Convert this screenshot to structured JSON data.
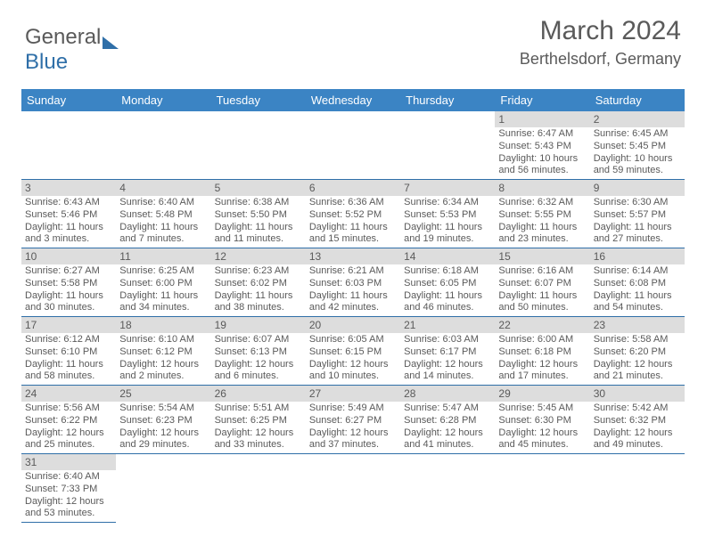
{
  "logo": {
    "part1": "General",
    "part2": "Blue"
  },
  "header": {
    "title": "March 2024",
    "location": "Berthelsdorf, Germany"
  },
  "colors": {
    "header_bg": "#3b84c4",
    "header_text": "#ffffff",
    "daynum_bg": "#dddddd",
    "text": "#5a5a5a",
    "border": "#2f6fa8",
    "logo_gray": "#5a5a5a",
    "logo_blue": "#2f6fa8"
  },
  "days": [
    "Sunday",
    "Monday",
    "Tuesday",
    "Wednesday",
    "Thursday",
    "Friday",
    "Saturday"
  ],
  "weeks": [
    [
      null,
      null,
      null,
      null,
      null,
      {
        "n": "1",
        "sr": "Sunrise: 6:47 AM",
        "ss": "Sunset: 5:43 PM",
        "d1": "Daylight: 10 hours",
        "d2": "and 56 minutes."
      },
      {
        "n": "2",
        "sr": "Sunrise: 6:45 AM",
        "ss": "Sunset: 5:45 PM",
        "d1": "Daylight: 10 hours",
        "d2": "and 59 minutes."
      }
    ],
    [
      {
        "n": "3",
        "sr": "Sunrise: 6:43 AM",
        "ss": "Sunset: 5:46 PM",
        "d1": "Daylight: 11 hours",
        "d2": "and 3 minutes."
      },
      {
        "n": "4",
        "sr": "Sunrise: 6:40 AM",
        "ss": "Sunset: 5:48 PM",
        "d1": "Daylight: 11 hours",
        "d2": "and 7 minutes."
      },
      {
        "n": "5",
        "sr": "Sunrise: 6:38 AM",
        "ss": "Sunset: 5:50 PM",
        "d1": "Daylight: 11 hours",
        "d2": "and 11 minutes."
      },
      {
        "n": "6",
        "sr": "Sunrise: 6:36 AM",
        "ss": "Sunset: 5:52 PM",
        "d1": "Daylight: 11 hours",
        "d2": "and 15 minutes."
      },
      {
        "n": "7",
        "sr": "Sunrise: 6:34 AM",
        "ss": "Sunset: 5:53 PM",
        "d1": "Daylight: 11 hours",
        "d2": "and 19 minutes."
      },
      {
        "n": "8",
        "sr": "Sunrise: 6:32 AM",
        "ss": "Sunset: 5:55 PM",
        "d1": "Daylight: 11 hours",
        "d2": "and 23 minutes."
      },
      {
        "n": "9",
        "sr": "Sunrise: 6:30 AM",
        "ss": "Sunset: 5:57 PM",
        "d1": "Daylight: 11 hours",
        "d2": "and 27 minutes."
      }
    ],
    [
      {
        "n": "10",
        "sr": "Sunrise: 6:27 AM",
        "ss": "Sunset: 5:58 PM",
        "d1": "Daylight: 11 hours",
        "d2": "and 30 minutes."
      },
      {
        "n": "11",
        "sr": "Sunrise: 6:25 AM",
        "ss": "Sunset: 6:00 PM",
        "d1": "Daylight: 11 hours",
        "d2": "and 34 minutes."
      },
      {
        "n": "12",
        "sr": "Sunrise: 6:23 AM",
        "ss": "Sunset: 6:02 PM",
        "d1": "Daylight: 11 hours",
        "d2": "and 38 minutes."
      },
      {
        "n": "13",
        "sr": "Sunrise: 6:21 AM",
        "ss": "Sunset: 6:03 PM",
        "d1": "Daylight: 11 hours",
        "d2": "and 42 minutes."
      },
      {
        "n": "14",
        "sr": "Sunrise: 6:18 AM",
        "ss": "Sunset: 6:05 PM",
        "d1": "Daylight: 11 hours",
        "d2": "and 46 minutes."
      },
      {
        "n": "15",
        "sr": "Sunrise: 6:16 AM",
        "ss": "Sunset: 6:07 PM",
        "d1": "Daylight: 11 hours",
        "d2": "and 50 minutes."
      },
      {
        "n": "16",
        "sr": "Sunrise: 6:14 AM",
        "ss": "Sunset: 6:08 PM",
        "d1": "Daylight: 11 hours",
        "d2": "and 54 minutes."
      }
    ],
    [
      {
        "n": "17",
        "sr": "Sunrise: 6:12 AM",
        "ss": "Sunset: 6:10 PM",
        "d1": "Daylight: 11 hours",
        "d2": "and 58 minutes."
      },
      {
        "n": "18",
        "sr": "Sunrise: 6:10 AM",
        "ss": "Sunset: 6:12 PM",
        "d1": "Daylight: 12 hours",
        "d2": "and 2 minutes."
      },
      {
        "n": "19",
        "sr": "Sunrise: 6:07 AM",
        "ss": "Sunset: 6:13 PM",
        "d1": "Daylight: 12 hours",
        "d2": "and 6 minutes."
      },
      {
        "n": "20",
        "sr": "Sunrise: 6:05 AM",
        "ss": "Sunset: 6:15 PM",
        "d1": "Daylight: 12 hours",
        "d2": "and 10 minutes."
      },
      {
        "n": "21",
        "sr": "Sunrise: 6:03 AM",
        "ss": "Sunset: 6:17 PM",
        "d1": "Daylight: 12 hours",
        "d2": "and 14 minutes."
      },
      {
        "n": "22",
        "sr": "Sunrise: 6:00 AM",
        "ss": "Sunset: 6:18 PM",
        "d1": "Daylight: 12 hours",
        "d2": "and 17 minutes."
      },
      {
        "n": "23",
        "sr": "Sunrise: 5:58 AM",
        "ss": "Sunset: 6:20 PM",
        "d1": "Daylight: 12 hours",
        "d2": "and 21 minutes."
      }
    ],
    [
      {
        "n": "24",
        "sr": "Sunrise: 5:56 AM",
        "ss": "Sunset: 6:22 PM",
        "d1": "Daylight: 12 hours",
        "d2": "and 25 minutes."
      },
      {
        "n": "25",
        "sr": "Sunrise: 5:54 AM",
        "ss": "Sunset: 6:23 PM",
        "d1": "Daylight: 12 hours",
        "d2": "and 29 minutes."
      },
      {
        "n": "26",
        "sr": "Sunrise: 5:51 AM",
        "ss": "Sunset: 6:25 PM",
        "d1": "Daylight: 12 hours",
        "d2": "and 33 minutes."
      },
      {
        "n": "27",
        "sr": "Sunrise: 5:49 AM",
        "ss": "Sunset: 6:27 PM",
        "d1": "Daylight: 12 hours",
        "d2": "and 37 minutes."
      },
      {
        "n": "28",
        "sr": "Sunrise: 5:47 AM",
        "ss": "Sunset: 6:28 PM",
        "d1": "Daylight: 12 hours",
        "d2": "and 41 minutes."
      },
      {
        "n": "29",
        "sr": "Sunrise: 5:45 AM",
        "ss": "Sunset: 6:30 PM",
        "d1": "Daylight: 12 hours",
        "d2": "and 45 minutes."
      },
      {
        "n": "30",
        "sr": "Sunrise: 5:42 AM",
        "ss": "Sunset: 6:32 PM",
        "d1": "Daylight: 12 hours",
        "d2": "and 49 minutes."
      }
    ],
    [
      {
        "n": "31",
        "sr": "Sunrise: 6:40 AM",
        "ss": "Sunset: 7:33 PM",
        "d1": "Daylight: 12 hours",
        "d2": "and 53 minutes."
      },
      null,
      null,
      null,
      null,
      null,
      null
    ]
  ]
}
